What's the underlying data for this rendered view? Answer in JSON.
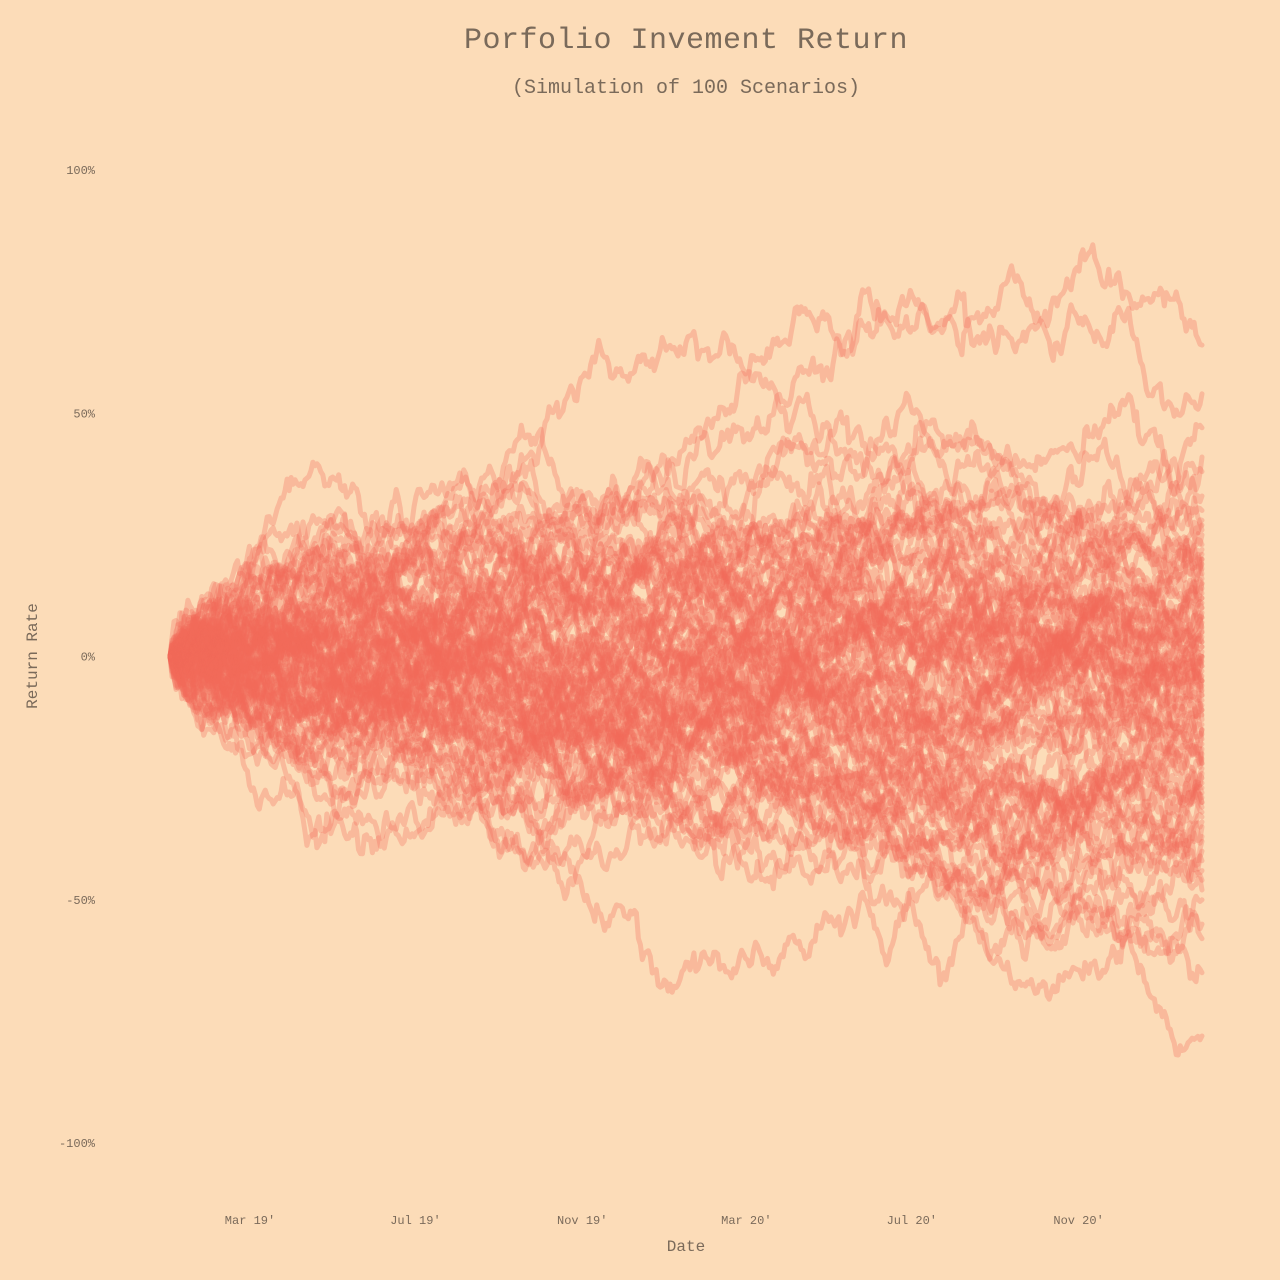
{
  "chart_data": {
    "type": "line",
    "title": "Porfolio Invement Return",
    "subtitle": "(Simulation of 100 Scenarios)",
    "xlabel": "Date",
    "ylabel": "Return Rate",
    "x_range": [
      "2019-01-01",
      "2021-01-31"
    ],
    "ylim": [
      -1.0,
      1.0
    ],
    "y_ticks": [
      1.0,
      0.5,
      0.0,
      -0.5,
      -1.0
    ],
    "y_tick_labels": [
      "100%",
      "50%",
      "0%",
      "-50%",
      "-100%"
    ],
    "x_ticks": [
      "2019-03-01",
      "2019-07-01",
      "2019-11-01",
      "2020-03-01",
      "2020-07-01",
      "2020-11-01"
    ],
    "x_tick_labels": [
      "Mar 19'",
      "Jul 19'",
      "Nov 19'",
      "Mar 20'",
      "Jul 20'",
      "Nov 20'"
    ],
    "grid": false,
    "legend": "none",
    "series_count": 100,
    "series_start_value": 0.0,
    "final_returns": [
      0.64,
      0.54,
      0.47,
      0.41,
      0.38,
      0.33,
      0.3,
      0.28,
      0.26,
      0.25,
      0.23,
      0.22,
      0.21,
      0.2,
      0.19,
      0.18,
      0.17,
      0.16,
      0.15,
      0.14,
      0.13,
      0.12,
      0.11,
      0.1,
      0.09,
      0.08,
      0.07,
      0.06,
      0.05,
      0.05,
      0.04,
      0.03,
      0.02,
      0.02,
      0.01,
      0.0,
      0.0,
      -0.01,
      -0.02,
      -0.02,
      -0.03,
      -0.04,
      -0.05,
      -0.05,
      -0.06,
      -0.07,
      -0.08,
      -0.08,
      -0.09,
      -0.1,
      -0.11,
      -0.12,
      -0.13,
      -0.14,
      -0.15,
      -0.16,
      -0.17,
      -0.18,
      -0.19,
      -0.2,
      -0.21,
      -0.22,
      -0.23,
      -0.24,
      -0.25,
      -0.26,
      -0.27,
      -0.28,
      -0.29,
      -0.3,
      -0.31,
      -0.32,
      -0.33,
      -0.34,
      -0.35,
      -0.37,
      -0.38,
      -0.4,
      -0.42,
      -0.44,
      -0.46,
      -0.48,
      -0.5,
      -0.55,
      -0.58,
      -0.65,
      -0.78,
      0.12,
      -0.11,
      0.2,
      0.0,
      0.08,
      -0.15,
      0.27,
      0.03,
      -0.22,
      0.1,
      -0.05,
      0.15,
      -0.3
    ],
    "line_color": "#f26b5b",
    "line_opacity": 0.3,
    "background_color": "#fcdcb8",
    "text_color": "#7a6a5a"
  }
}
